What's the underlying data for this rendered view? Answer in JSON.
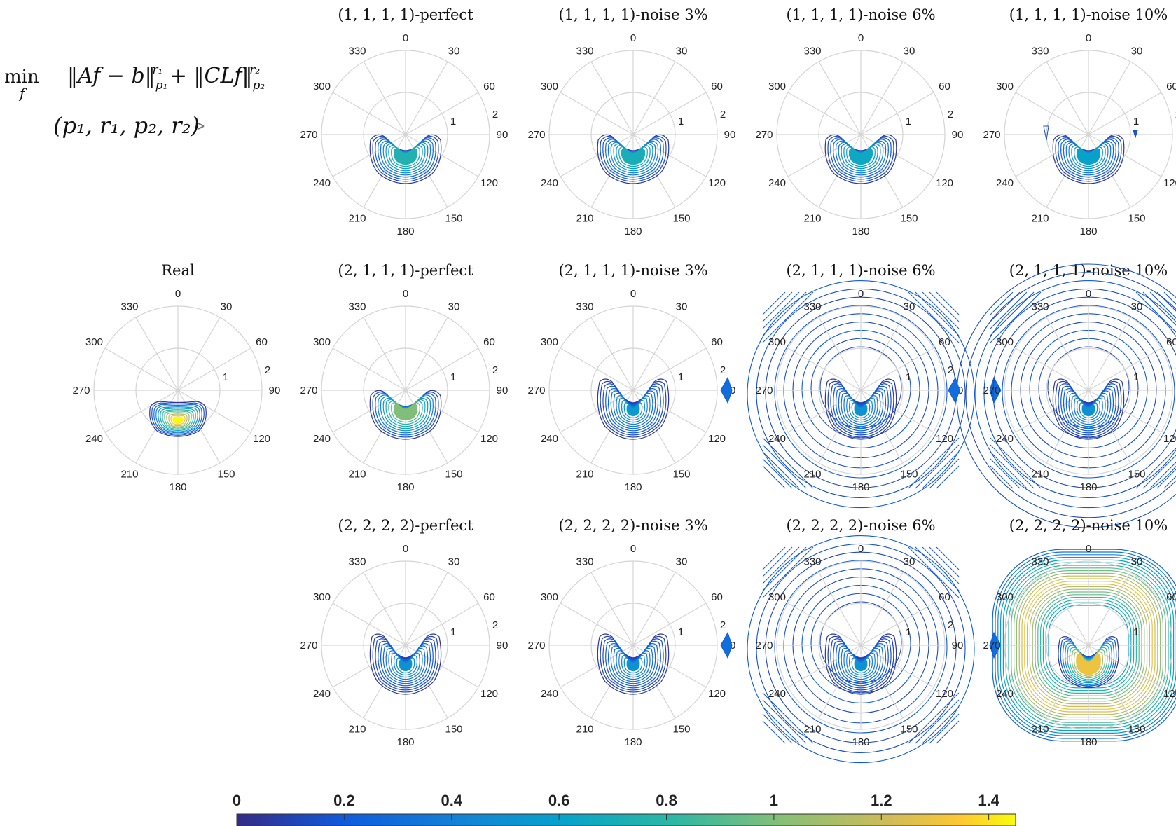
{
  "formula": {
    "min": "min",
    "var": "f",
    "objective": "‖Af − b‖",
    "p1": "p₁",
    "r1": "r₁",
    "plus": " + ‖CLf‖",
    "p2": "p₂",
    "r2": "r₂",
    "tuple": "(p₁, r₁, p₂, r₂)"
  },
  "chart_data": {
    "type": "polar-contour",
    "angle_ticks": [
      "0",
      "30",
      "60",
      "90",
      "120",
      "150",
      "180",
      "210",
      "240",
      "270",
      "300",
      "330"
    ],
    "radial_ticks": [
      "1",
      "2"
    ],
    "rlim": [
      0,
      2
    ],
    "grid": true,
    "panels": [
      {
        "title": "(1, 1, 1, 1)-perfect",
        "row": 0,
        "col": 1,
        "pattern": "crescent",
        "peak": 0.75
      },
      {
        "title": "(1, 1, 1, 1)-noise 3%",
        "row": 0,
        "col": 2,
        "pattern": "crescent",
        "peak": 0.7
      },
      {
        "title": "(1, 1, 1, 1)-noise 6%",
        "row": 0,
        "col": 3,
        "pattern": "crescent",
        "peak": 0.65
      },
      {
        "title": "(1, 1, 1, 1)-noise 10%",
        "row": 0,
        "col": 4,
        "pattern": "crescent-speck",
        "peak": 0.6
      },
      {
        "title": "Real",
        "row": 1,
        "col": 0,
        "pattern": "blob",
        "peak": 1.45
      },
      {
        "title": "(2, 1, 1, 1)-perfect",
        "row": 1,
        "col": 1,
        "pattern": "crescent",
        "peak": 1.0
      },
      {
        "title": "(2, 1, 1, 1)-noise 3%",
        "row": 1,
        "col": 2,
        "pattern": "crescent-deep",
        "peak": 0.55
      },
      {
        "title": "(2, 1, 1, 1)-noise 6%",
        "row": 1,
        "col": 3,
        "pattern": "crescent-rings",
        "peak": 0.5
      },
      {
        "title": "(2, 1, 1, 1)-noise 10%",
        "row": 1,
        "col": 4,
        "pattern": "crescent-rings-strong",
        "peak": 0.5
      },
      {
        "title": "(2, 2, 2, 2)-perfect",
        "row": 2,
        "col": 1,
        "pattern": "crescent-deep",
        "peak": 0.5
      },
      {
        "title": "(2, 2, 2, 2)-noise 3%",
        "row": 2,
        "col": 2,
        "pattern": "crescent-deep",
        "peak": 0.5
      },
      {
        "title": "(2, 2, 2, 2)-noise 6%",
        "row": 2,
        "col": 3,
        "pattern": "crescent-rings",
        "peak": 0.5
      },
      {
        "title": "(2, 2, 2, 2)-noise 10%",
        "row": 2,
        "col": 4,
        "pattern": "ring-bright",
        "peak": 1.3
      }
    ],
    "colorbar": {
      "colormap": "parula",
      "range": [
        0,
        1.45
      ],
      "ticks": [
        "0",
        "0.2",
        "0.4",
        "0.6",
        "0.8",
        "1",
        "1.2",
        "1.4"
      ]
    }
  }
}
